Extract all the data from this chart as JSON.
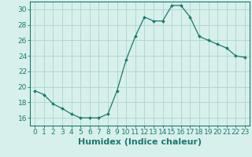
{
  "x": [
    0,
    1,
    2,
    3,
    4,
    5,
    6,
    7,
    8,
    9,
    10,
    11,
    12,
    13,
    14,
    15,
    16,
    17,
    18,
    19,
    20,
    21,
    22,
    23
  ],
  "y": [
    19.5,
    19.0,
    17.8,
    17.2,
    16.5,
    16.0,
    16.0,
    16.0,
    16.5,
    19.5,
    23.5,
    26.5,
    29.0,
    28.5,
    28.5,
    30.5,
    30.5,
    29.0,
    26.5,
    26.0,
    25.5,
    25.0,
    24.0,
    23.8
  ],
  "line_color": "#1a7a6e",
  "marker": "D",
  "marker_size": 2.0,
  "bg_color": "#d8f0ec",
  "grid_color": "#b0d8d0",
  "grid_minor_color": "#c8e8e2",
  "xlabel": "Humidex (Indice chaleur)",
  "ylim": [
    15,
    31
  ],
  "xlim": [
    -0.5,
    23.5
  ],
  "yticks": [
    16,
    18,
    20,
    22,
    24,
    26,
    28,
    30
  ],
  "xticks": [
    0,
    1,
    2,
    3,
    4,
    5,
    6,
    7,
    8,
    9,
    10,
    11,
    12,
    13,
    14,
    15,
    16,
    17,
    18,
    19,
    20,
    21,
    22,
    23
  ],
  "xtick_labels": [
    "0",
    "1",
    "2",
    "3",
    "4",
    "5",
    "6",
    "7",
    "8",
    "9",
    "10",
    "11",
    "12",
    "13",
    "14",
    "15",
    "16",
    "17",
    "18",
    "19",
    "20",
    "21",
    "22",
    "23"
  ],
  "tick_color": "#1a7a6e",
  "spine_color": "#1a7a6e",
  "label_fontsize": 8,
  "tick_fontsize": 6.5
}
